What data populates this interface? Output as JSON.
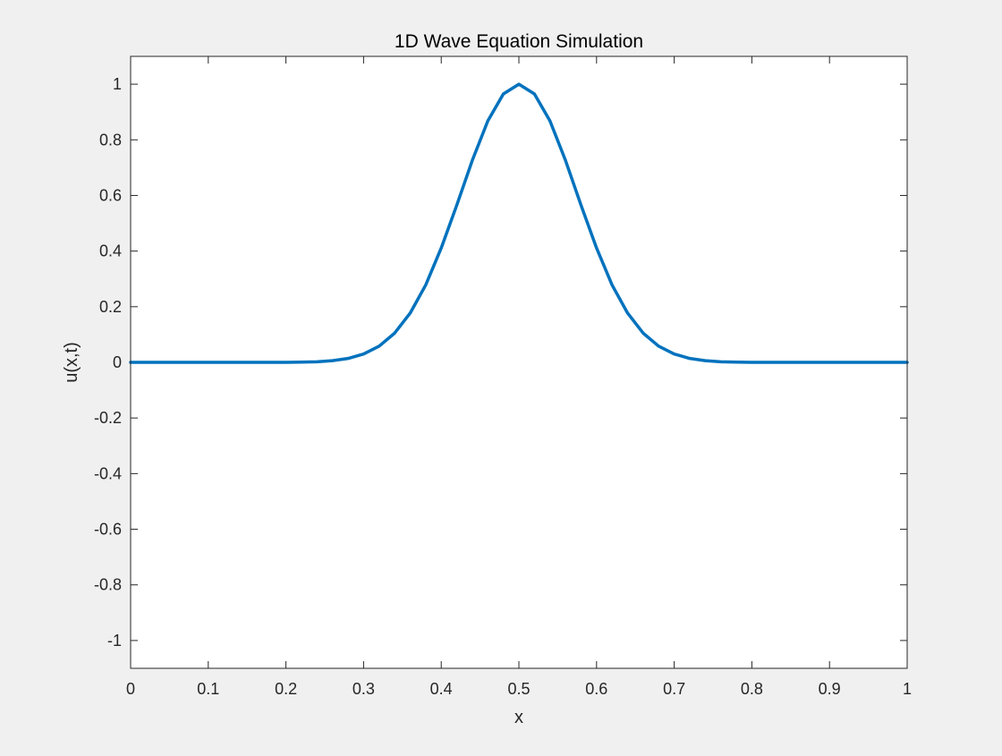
{
  "chart_data": {
    "type": "line",
    "title": "1D Wave Equation Simulation",
    "xlabel": "x",
    "ylabel": "u(x,t)",
    "xlim": [
      0,
      1
    ],
    "ylim": [
      -1.1,
      1.1
    ],
    "xticks": [
      0,
      0.1,
      0.2,
      0.3,
      0.4,
      0.5,
      0.6,
      0.7,
      0.8,
      0.9,
      1
    ],
    "xtick_labels": [
      "0",
      "0.1",
      "0.2",
      "0.3",
      "0.4",
      "0.5",
      "0.6",
      "0.7",
      "0.8",
      "0.9",
      "1"
    ],
    "yticks": [
      -1,
      -0.8,
      -0.6,
      -0.4,
      -0.2,
      0,
      0.2,
      0.4,
      0.6,
      0.8,
      1
    ],
    "ytick_labels": [
      "-1",
      "-0.8",
      "-0.6",
      "-0.4",
      "-0.2",
      "0",
      "0.2",
      "0.4",
      "0.6",
      "0.8",
      "1"
    ],
    "grid": false,
    "box": true,
    "series": [
      {
        "color": "#0072BD",
        "x": [
          0,
          0.05,
          0.1,
          0.15,
          0.2,
          0.22,
          0.24,
          0.26,
          0.28,
          0.3,
          0.32,
          0.34,
          0.36,
          0.38,
          0.4,
          0.42,
          0.44,
          0.46,
          0.48,
          0.5,
          0.52,
          0.54,
          0.56,
          0.58,
          0.6,
          0.62,
          0.64,
          0.66,
          0.68,
          0.7,
          0.72,
          0.74,
          0.76,
          0.78,
          0.8,
          0.85,
          0.9,
          0.95,
          1
        ],
        "y": [
          0,
          0,
          0,
          0,
          0,
          0.001,
          0.002,
          0.006,
          0.014,
          0.03,
          0.058,
          0.105,
          0.177,
          0.278,
          0.411,
          0.565,
          0.726,
          0.868,
          0.965,
          1,
          0.965,
          0.868,
          0.726,
          0.565,
          0.411,
          0.278,
          0.177,
          0.105,
          0.058,
          0.03,
          0.014,
          0.006,
          0.002,
          0.001,
          0,
          0,
          0,
          0,
          0
        ]
      }
    ]
  },
  "colors": {
    "figure_background": "#f0f0f0",
    "axes_background": "#ffffff",
    "axes_color": "#262626",
    "line_color": "#0072BD"
  }
}
